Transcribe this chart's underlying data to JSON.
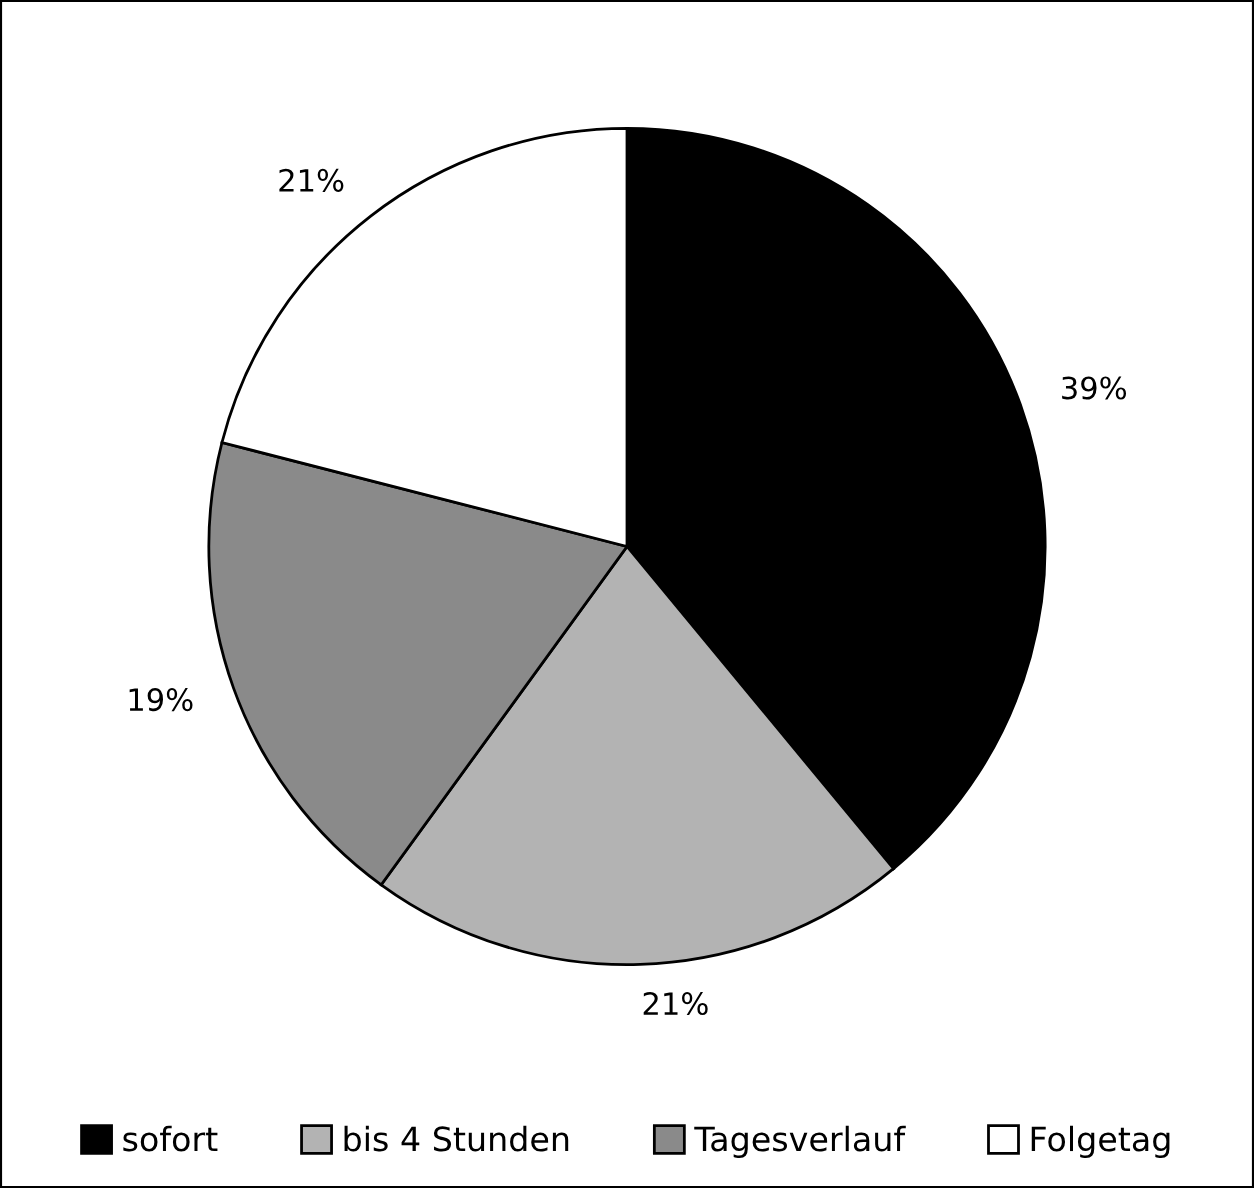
{
  "chart_data": {
    "type": "pie",
    "categories": [
      "sofort",
      "bis 4 Stunden",
      "Tagesverlauf",
      "Folgetag"
    ],
    "values": [
      39,
      21,
      19,
      21
    ],
    "colors": [
      "#000000",
      "#b3b3b3",
      "#8a8a8a",
      "#ffffff"
    ],
    "value_labels": [
      "39%",
      "21%",
      "19%",
      "21%"
    ],
    "legend": "bottom"
  }
}
